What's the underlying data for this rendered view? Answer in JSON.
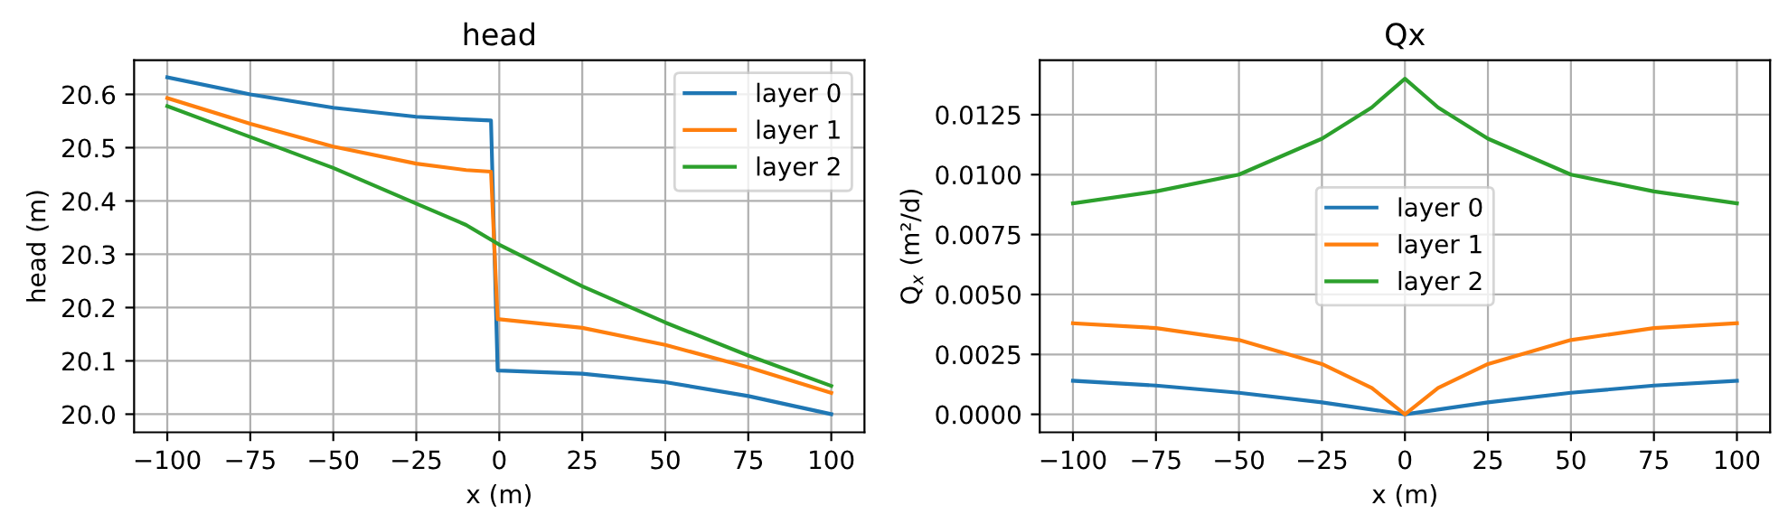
{
  "chart_data": [
    {
      "type": "line",
      "title": "head",
      "xlabel": "x (m)",
      "ylabel": "head (m)",
      "xlim": [
        -110,
        110
      ],
      "xticks": [
        {
          "value": -100,
          "label": "−100"
        },
        {
          "value": -75,
          "label": "−75"
        },
        {
          "value": -50,
          "label": "−50"
        },
        {
          "value": -25,
          "label": "−25"
        },
        0,
        25,
        50,
        75,
        100
      ],
      "ylim": [
        19.966,
        20.664
      ],
      "yticks": [
        {
          "value": 20.0,
          "label": "20.0"
        },
        20.1,
        20.2,
        20.3,
        20.4,
        20.5,
        20.6
      ],
      "grid": true,
      "legend": "top right",
      "series": [
        {
          "name": "layer 0",
          "color": "#1f77b4",
          "x": [
            -100,
            -75,
            -50,
            -25,
            -10,
            -2.5,
            -0.5,
            0,
            25,
            50,
            75,
            100
          ],
          "values": [
            20.632,
            20.6,
            20.575,
            20.558,
            20.553,
            20.551,
            20.082,
            20.082,
            20.076,
            20.06,
            20.034,
            20.0
          ]
        },
        {
          "name": "layer 1",
          "color": "#ff7f0e",
          "x": [
            -100,
            -75,
            -50,
            -25,
            -10,
            -2.5,
            -0.5,
            0,
            25,
            50,
            75,
            100
          ],
          "values": [
            20.593,
            20.545,
            20.502,
            20.47,
            20.458,
            20.455,
            20.178,
            20.178,
            20.162,
            20.13,
            20.088,
            20.04
          ]
        },
        {
          "name": "layer 2",
          "color": "#2ca02c",
          "x": [
            -100,
            -75,
            -50,
            -25,
            -10,
            0,
            25,
            50,
            75,
            100
          ],
          "values": [
            20.578,
            20.52,
            20.462,
            20.395,
            20.355,
            20.318,
            20.24,
            20.172,
            20.11,
            20.053
          ]
        }
      ]
    },
    {
      "type": "line",
      "title": "Qx",
      "xlabel": "x (m)",
      "ylabel": "Q$_{x}$ (m²/d)",
      "xlim": [
        -110,
        110
      ],
      "xticks": [
        {
          "value": -100,
          "label": "−100"
        },
        {
          "value": -75,
          "label": "−75"
        },
        {
          "value": -50,
          "label": "−50"
        },
        {
          "value": -25,
          "label": "−25"
        },
        0,
        25,
        50,
        75,
        100
      ],
      "ylim": [
        -0.00075,
        0.01477
      ],
      "yticks": [
        {
          "value": 0.0,
          "label": "0.0000"
        },
        {
          "value": 0.0025,
          "label": "0.0025"
        },
        {
          "value": 0.005,
          "label": "0.0050"
        },
        {
          "value": 0.0075,
          "label": "0.0075"
        },
        {
          "value": 0.01,
          "label": "0.0100"
        },
        {
          "value": 0.0125,
          "label": "0.0125"
        }
      ],
      "grid": true,
      "legend": "center",
      "series": [
        {
          "name": "layer 0",
          "color": "#1f77b4",
          "x": [
            -100,
            -75,
            -50,
            -25,
            0,
            25,
            50,
            75,
            100
          ],
          "values": [
            0.0014,
            0.0012,
            0.0009,
            0.0005,
            0.0,
            0.0005,
            0.0009,
            0.0012,
            0.0014
          ]
        },
        {
          "name": "layer 1",
          "color": "#ff7f0e",
          "x": [
            -100,
            -75,
            -50,
            -25,
            -10,
            0,
            10,
            25,
            50,
            75,
            100
          ],
          "values": [
            0.0038,
            0.0036,
            0.0031,
            0.0021,
            0.0011,
            0.0,
            0.0011,
            0.0021,
            0.0031,
            0.0036,
            0.0038
          ]
        },
        {
          "name": "layer 2",
          "color": "#2ca02c",
          "x": [
            -100,
            -75,
            -50,
            -25,
            -10,
            0,
            10,
            25,
            50,
            75,
            100
          ],
          "values": [
            0.0088,
            0.0093,
            0.01,
            0.0115,
            0.0128,
            0.014,
            0.0128,
            0.0115,
            0.01,
            0.0093,
            0.0088
          ]
        }
      ]
    }
  ]
}
